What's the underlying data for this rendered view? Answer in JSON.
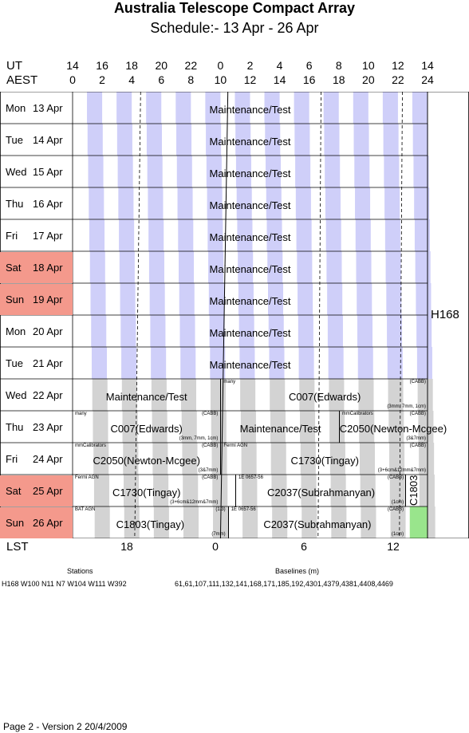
{
  "title": "Australia Telescope Compact Array",
  "subtitle": "Schedule:- 13 Apr - 26 Apr",
  "axes": {
    "ut_label": "UT",
    "aest_label": "AEST",
    "ut_ticks": [
      "14",
      "16",
      "18",
      "20",
      "22",
      "0",
      "2",
      "4",
      "6",
      "8",
      "10",
      "12",
      "14"
    ],
    "aest_ticks": [
      "0",
      "2",
      "4",
      "6",
      "8",
      "10",
      "12",
      "14",
      "16",
      "18",
      "20",
      "22",
      "24"
    ],
    "lst_label": "LST",
    "lst_ticks": [
      "18",
      "0",
      "6",
      "12"
    ]
  },
  "days": [
    {
      "name": "Mon",
      "date": "13 Apr",
      "weekend": false
    },
    {
      "name": "Tue",
      "date": "14 Apr",
      "weekend": false
    },
    {
      "name": "Wed",
      "date": "15 Apr",
      "weekend": false
    },
    {
      "name": "Thu",
      "date": "16 Apr",
      "weekend": false
    },
    {
      "name": "Fri",
      "date": "17 Apr",
      "weekend": false
    },
    {
      "name": "Sat",
      "date": "18 Apr",
      "weekend": true
    },
    {
      "name": "Sun",
      "date": "19 Apr",
      "weekend": true
    },
    {
      "name": "Mon",
      "date": "20 Apr",
      "weekend": false
    },
    {
      "name": "Tue",
      "date": "21 Apr",
      "weekend": false
    },
    {
      "name": "Wed",
      "date": "22 Apr",
      "weekend": false
    },
    {
      "name": "Thu",
      "date": "23 Apr",
      "weekend": false
    },
    {
      "name": "Fri",
      "date": "24 Apr",
      "weekend": false
    },
    {
      "name": "Sat",
      "date": "25 Apr",
      "weekend": true
    },
    {
      "name": "Sun",
      "date": "26 Apr",
      "weekend": true
    }
  ],
  "config": {
    "label": "H168"
  },
  "blocks": [
    {
      "row": 0,
      "start": 0,
      "end": 24,
      "label": "Maintenance/Test",
      "source": "",
      "dir": "",
      "bands": ""
    },
    {
      "row": 1,
      "start": 0,
      "end": 24,
      "label": "Maintenance/Test",
      "source": "",
      "dir": "",
      "bands": ""
    },
    {
      "row": 2,
      "start": 0,
      "end": 24,
      "label": "Maintenance/Test",
      "source": "",
      "dir": "",
      "bands": ""
    },
    {
      "row": 3,
      "start": 0,
      "end": 24,
      "label": "Maintenance/Test",
      "source": "",
      "dir": "",
      "bands": ""
    },
    {
      "row": 4,
      "start": 0,
      "end": 24,
      "label": "Maintenance/Test",
      "source": "",
      "dir": "",
      "bands": ""
    },
    {
      "row": 5,
      "start": 0,
      "end": 24,
      "label": "Maintenance/Test",
      "source": "",
      "dir": "",
      "bands": ""
    },
    {
      "row": 6,
      "start": 0,
      "end": 24,
      "label": "Maintenance/Test",
      "source": "",
      "dir": "",
      "bands": ""
    },
    {
      "row": 7,
      "start": 0,
      "end": 24,
      "label": "Maintenance/Test",
      "source": "",
      "dir": "",
      "bands": ""
    },
    {
      "row": 8,
      "start": 0,
      "end": 24,
      "label": "Maintenance/Test",
      "source": "",
      "dir": "",
      "bands": ""
    },
    {
      "row": 9,
      "start": 0,
      "end": 10,
      "label": "Maintenance/Test",
      "source": "",
      "dir": "",
      "bands": ""
    },
    {
      "row": 9,
      "start": 10,
      "end": 24,
      "label": "C007(Edwards)",
      "source": "many",
      "dir": "(CABB)",
      "bands": "(3mm, 7mm, 1cm)"
    },
    {
      "row": 10,
      "start": 0,
      "end": 10,
      "label": "C007(Edwards)",
      "source": "many",
      "dir": "(CABB)",
      "bands": "(3mm, 7mm, 1cm)"
    },
    {
      "row": 10,
      "start": 10,
      "end": 18,
      "label": "Maintenance/Test",
      "source": "",
      "dir": "",
      "bands": ""
    },
    {
      "row": 10,
      "start": 18,
      "end": 24,
      "label": "C2050(Newton-Mcgee)",
      "source": "mmCalibrators",
      "dir": "(CABB)",
      "bands": "(3&7mm)"
    },
    {
      "row": 11,
      "start": 0,
      "end": 10,
      "label": "C2050(Newton-Mcgee)",
      "source": "mmCalibrators",
      "dir": "(CABB)",
      "bands": "(3&7mm)"
    },
    {
      "row": 11,
      "start": 10,
      "end": 24,
      "label": "C1730(Tingay)",
      "source": "Fermi AGN",
      "dir": "(CABB)",
      "bands": "(3+6cm&12mm&7mm)"
    },
    {
      "row": 12,
      "start": 0,
      "end": 10,
      "label": "C1730(Tingay)",
      "source": "Fermi AGN",
      "dir": "(CABB)",
      "bands": "(3+6cm&12mm&7mm)"
    },
    {
      "row": 12,
      "start": 11,
      "end": 22.5,
      "label": "C2037(Subrahmanyan)",
      "source": "1E 0657-56",
      "dir": "(CABB)",
      "bands": "(1cm)"
    },
    {
      "row": 12,
      "start": 22.5,
      "end": 24,
      "label": "C1803",
      "source": "",
      "dir": "",
      "bands": "",
      "vertical": true
    },
    {
      "row": 13,
      "start": 0,
      "end": 10.5,
      "label": "C1803(Tingay)",
      "source": "BAT AGN",
      "dir": "(1.3)",
      "bands": "(7mm)"
    },
    {
      "row": 13,
      "start": 10.5,
      "end": 22.5,
      "label": "C2037(Subrahmanyan)",
      "source": "1E 0657-56",
      "dir": "(CABB)",
      "bands": "(1cm)"
    }
  ],
  "bottom": {
    "stations_title": "Stations",
    "stations": "H168   W100 N11 N7 W104 W111 W392",
    "baselines_title": "Baselines (m)",
    "baselines": "61,61,107,111,132,141,168,171,185,192,4301,4379,4381,4408,4469"
  },
  "footer": "Page 2 - Version 2  20/4/2009",
  "colors": {
    "day_stripe": "#cfcff9",
    "night_stripe": "#d3d3d3",
    "weekend": "#f4998c",
    "green": "#99e58c"
  }
}
